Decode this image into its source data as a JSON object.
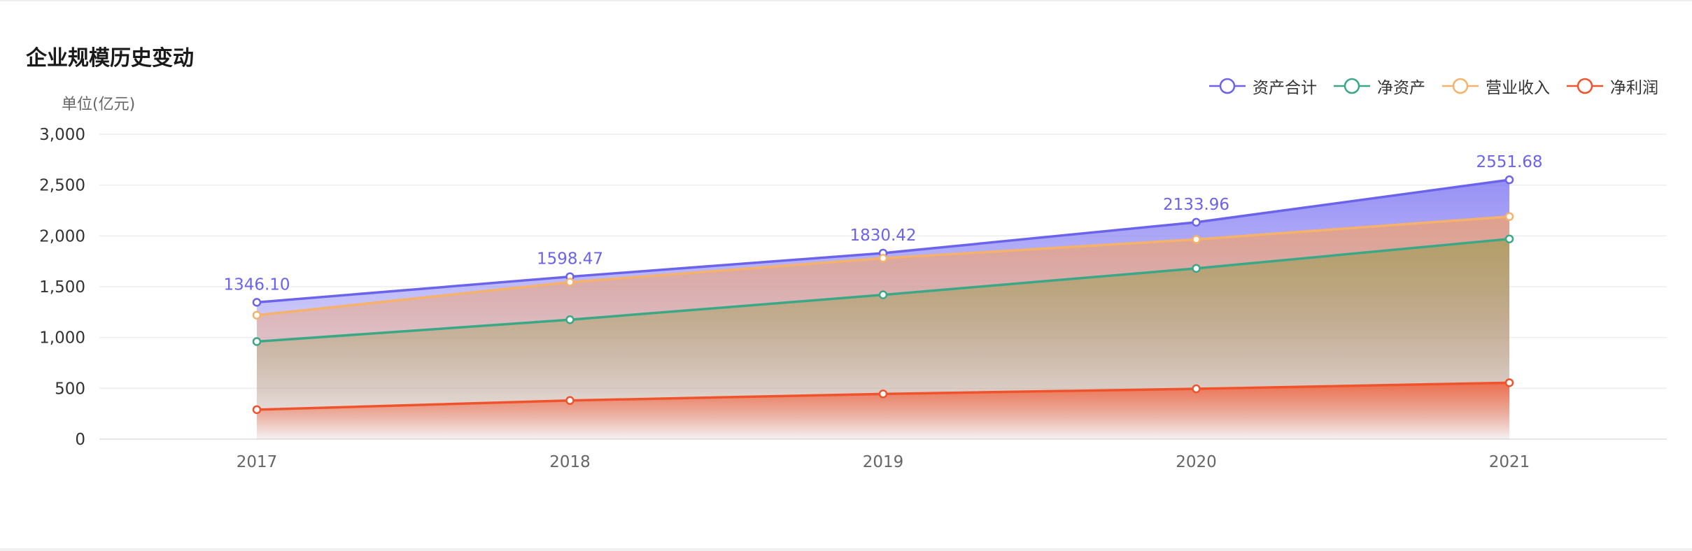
{
  "title": "企业规模历史变动",
  "unit_label": "单位(亿元)",
  "chart_data": {
    "type": "area",
    "title": "企业规模历史变动",
    "categories": [
      "2017",
      "2018",
      "2019",
      "2020",
      "2021"
    ],
    "ylim": [
      0,
      3000
    ],
    "yticks": [
      "0",
      "500",
      "1,000",
      "1,500",
      "2,000",
      "2,500",
      "3,000"
    ],
    "ytick_values": [
      0,
      500,
      1000,
      1500,
      2000,
      2500,
      3000
    ],
    "grid": true,
    "legend_position": "top-right",
    "series": [
      {
        "name": "资产合计",
        "color": "#6b63ea",
        "values": [
          1346.1,
          1598.47,
          1830.42,
          2133.96,
          2551.68
        ],
        "data_labels": [
          "1346.10",
          "1598.47",
          "1830.42",
          "2133.96",
          "2551.68"
        ]
      },
      {
        "name": "净资产",
        "color": "#3aa886",
        "values": [
          960,
          1175,
          1420,
          1680,
          1970
        ]
      },
      {
        "name": "营业收入",
        "color": "#f6b26b",
        "values": [
          1220,
          1545,
          1780,
          1965,
          2190
        ]
      },
      {
        "name": "净利润",
        "color": "#f0532b",
        "values": [
          290,
          380,
          445,
          495,
          555
        ]
      }
    ]
  }
}
